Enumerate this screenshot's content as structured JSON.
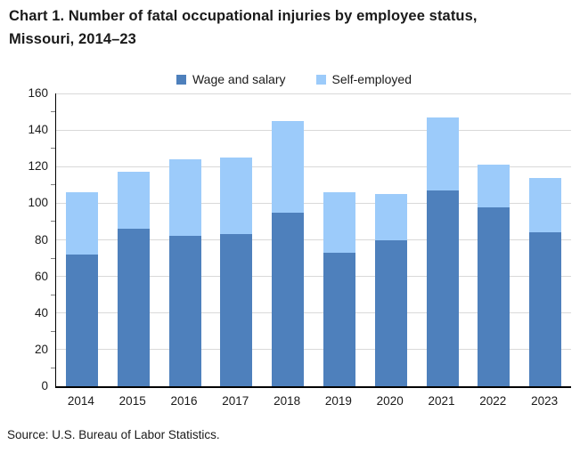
{
  "title": {
    "line1": "Chart 1. Number of fatal occupational injuries by employee status,",
    "line2": "Missouri, 2014–23"
  },
  "source": "Source: U.S. Bureau of Labor Statistics.",
  "chart_data": {
    "type": "bar",
    "stacked": true,
    "title": "Chart 1. Number of fatal occupational injuries by employee status, Missouri, 2014–23",
    "categories": [
      "2014",
      "2015",
      "2016",
      "2017",
      "2018",
      "2019",
      "2020",
      "2021",
      "2022",
      "2023"
    ],
    "series": [
      {
        "name": "Wage and salary",
        "color": "#4E80BC",
        "values": [
          72,
          86,
          82,
          83,
          95,
          73,
          80,
          107,
          98,
          84
        ]
      },
      {
        "name": "Self-employed",
        "color": "#9CCBFA",
        "values": [
          34,
          31,
          42,
          42,
          50,
          33,
          25,
          40,
          23,
          30
        ]
      }
    ],
    "totals": [
      106,
      117,
      124,
      125,
      145,
      106,
      105,
      147,
      121,
      114
    ],
    "xlabel": "",
    "ylabel": "",
    "ylim": [
      0,
      160
    ],
    "ytick_interval": 20,
    "yticks": [
      0,
      20,
      40,
      60,
      80,
      100,
      120,
      140,
      160
    ],
    "grid": true,
    "gridline_color": "#d9d9d9",
    "legend_position": "top"
  }
}
